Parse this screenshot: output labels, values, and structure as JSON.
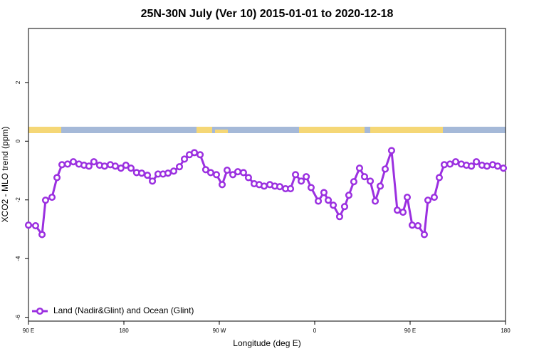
{
  "chart_data": {
    "type": "line",
    "title": "25N-30N July (Ver 10)   2015-01-01 to 2020-12-18",
    "xlabel": "Longitude (deg E)",
    "ylabel": "XCO2 - MLO trend (ppm)",
    "xlim": [
      90,
      540
    ],
    "ylim": [
      -6.13,
      3.84
    ],
    "xticks": [
      {
        "value": 90,
        "label": "90 E"
      },
      {
        "value": 180,
        "label": "180"
      },
      {
        "value": 270,
        "label": "90 W"
      },
      {
        "value": 360,
        "label": "0"
      },
      {
        "value": 450,
        "label": "90 E"
      },
      {
        "value": 540,
        "label": "180"
      }
    ],
    "yticks": [
      -6,
      -4,
      -2,
      0,
      2
    ],
    "legend": "bottom-left",
    "x": [
      90,
      96.7,
      102.8,
      106.1,
      112.2,
      116.9,
      121.6,
      126.9,
      132.3,
      137.6,
      142.4,
      147,
      151.7,
      157.1,
      161.8,
      167.2,
      171.9,
      177.2,
      181.9,
      186.7,
      192,
      196.8,
      202.2,
      206.9,
      212.2,
      216.9,
      221.6,
      227,
      232.4,
      237.1,
      241.8,
      246.5,
      251.9,
      257.2,
      261.9,
      267.3,
      272.7,
      277.4,
      282.8,
      287.5,
      292.8,
      297.5,
      302.9,
      307.6,
      312.3,
      317.7,
      322.4,
      327.1,
      332.5,
      337.2,
      341.9,
      347.3,
      352,
      356.6,
      363.4,
      368.7,
      372.8,
      377.5,
      383.5,
      388.2,
      392.2,
      396.9,
      402.3,
      407,
      412.4,
      417.1,
      421.8,
      426.5,
      432.5,
      437.9,
      443.3,
      447.3,
      452,
      457.4,
      463.4,
      466.8,
      472.8,
      477.5,
      482.2,
      487.6,
      493,
      498.3,
      503.1,
      507.8,
      512.5,
      517.8,
      522.5,
      527.9,
      532.6,
      538
    ],
    "series": [
      {
        "name": "Land (Nadir&Glint) and Ocean (Glint)",
        "color": "#9b30e0",
        "values": [
          -2.86,
          -2.88,
          -3.18,
          -2.01,
          -1.91,
          -1.24,
          -0.8,
          -0.78,
          -0.7,
          -0.78,
          -0.82,
          -0.85,
          -0.7,
          -0.82,
          -0.85,
          -0.8,
          -0.85,
          -0.92,
          -0.82,
          -0.92,
          -1.07,
          -1.09,
          -1.16,
          -1.36,
          -1.12,
          -1.12,
          -1.09,
          -1.02,
          -0.87,
          -0.61,
          -0.46,
          -0.39,
          -0.46,
          -0.97,
          -1.07,
          -1.14,
          -1.48,
          -0.99,
          -1.14,
          -1.04,
          -1.07,
          -1.24,
          -1.45,
          -1.48,
          -1.53,
          -1.48,
          -1.53,
          -1.55,
          -1.62,
          -1.62,
          -1.14,
          -1.36,
          -1.21,
          -1.58,
          -2.04,
          -1.75,
          -2.01,
          -2.18,
          -2.57,
          -2.23,
          -1.84,
          -1.38,
          -0.92,
          -1.21,
          -1.36,
          -2.04,
          -1.53,
          -0.95,
          -0.32,
          -2.35,
          -2.42,
          -1.91,
          -2.86,
          -2.88,
          -3.18,
          -2.01,
          -1.91,
          -1.24,
          -0.8,
          -0.78,
          -0.7,
          -0.78,
          -0.82,
          -0.85,
          -0.7,
          -0.82,
          -0.85,
          -0.8,
          -0.85,
          -0.92
        ]
      }
    ]
  }
}
